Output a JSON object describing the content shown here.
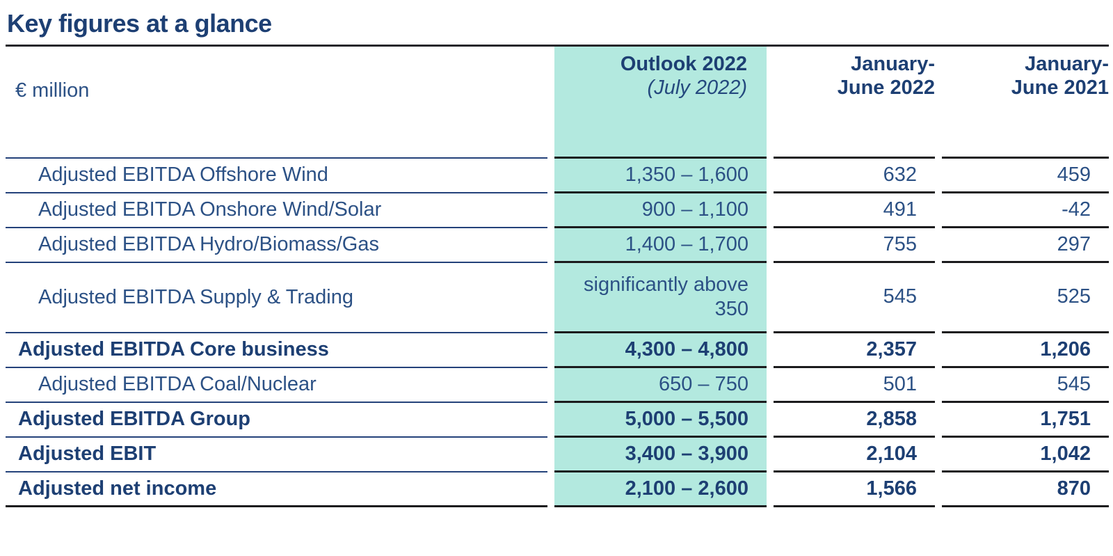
{
  "title": "Key figures at a glance",
  "colors": {
    "accent_teal": "#b3e9df",
    "navy_text": "#2c5185",
    "navy_bold": "#1d3f73",
    "rule_navy": "#24427a",
    "rule_dark": "#1b1b1d"
  },
  "table": {
    "unit_label": "€ million",
    "columns": {
      "outlook": {
        "title": "Outlook 2022",
        "subtitle": "(July 2022)"
      },
      "h1_2022": {
        "line1": "January-",
        "line2": "June 2022"
      },
      "h1_2021": {
        "line1": "January-",
        "line2": "June 2021"
      }
    },
    "rows": [
      {
        "label": "Adjusted EBITDA Offshore Wind",
        "outlook": "1,350 – 1,600",
        "h1_2022": "632",
        "h1_2021": "459",
        "indented": true,
        "emphasis": false
      },
      {
        "label": "Adjusted EBITDA Onshore Wind/Solar",
        "outlook": "900 – 1,100",
        "h1_2022": "491",
        "h1_2021": "-42",
        "indented": true,
        "emphasis": false
      },
      {
        "label": "Adjusted EBITDA Hydro/Biomass/Gas",
        "outlook": "1,400 – 1,700",
        "h1_2022": "755",
        "h1_2021": "297",
        "indented": true,
        "emphasis": false
      },
      {
        "label": "Adjusted EBITDA Supply & Trading",
        "outlook": "significantly above 350",
        "h1_2022": "545",
        "h1_2021": "525",
        "indented": true,
        "emphasis": false
      },
      {
        "label": "Adjusted EBITDA Core business",
        "outlook": "4,300 – 4,800",
        "h1_2022": "2,357",
        "h1_2021": "1,206",
        "indented": false,
        "emphasis": true
      },
      {
        "label": "Adjusted EBITDA Coal/Nuclear",
        "outlook": "650 – 750",
        "h1_2022": "501",
        "h1_2021": "545",
        "indented": true,
        "emphasis": false
      },
      {
        "label": "Adjusted EBITDA Group",
        "outlook": "5,000 – 5,500",
        "h1_2022": "2,858",
        "h1_2021": "1,751",
        "indented": false,
        "emphasis": true
      },
      {
        "label": "Adjusted EBIT",
        "outlook": "3,400 – 3,900",
        "h1_2022": "2,104",
        "h1_2021": "1,042",
        "indented": false,
        "emphasis": true
      },
      {
        "label": "Adjusted net income",
        "outlook": "2,100 – 2,600",
        "h1_2022": "1,566",
        "h1_2021": "870",
        "indented": false,
        "emphasis": true
      }
    ]
  }
}
